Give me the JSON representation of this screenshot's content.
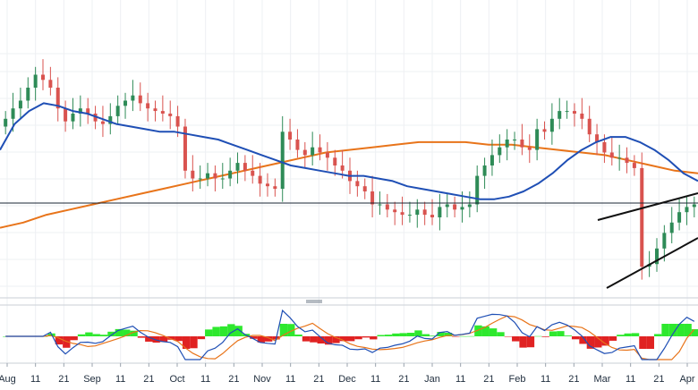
{
  "chart_data": [
    {
      "type": "candlestick",
      "panel": "price",
      "x_tick_labels": [
        "Aug",
        "11",
        "21",
        "Sep",
        "11",
        "21",
        "Oct",
        "11",
        "21",
        "Nov",
        "11",
        "21",
        "Dec",
        "11",
        "21",
        "Jan",
        "11",
        "21",
        "Feb",
        "11",
        "21",
        "Mar",
        "11",
        "21",
        "Apr"
      ],
      "y_range": [
        0,
        100
      ],
      "grid": true,
      "series": [
        {
          "kind": "candles",
          "color_up": "#2e8b57",
          "color_down": "#d9534f",
          "close": [
            68,
            72,
            75,
            80,
            85,
            83,
            80,
            72,
            67,
            70,
            72,
            70,
            67,
            66,
            69,
            73,
            75,
            77,
            74,
            72,
            71,
            70,
            69,
            65,
            48,
            45,
            45,
            47,
            45,
            45,
            48,
            51,
            48,
            46,
            43,
            42,
            41,
            63,
            60,
            56,
            54,
            57,
            55,
            53,
            50,
            48,
            44,
            42,
            40,
            35,
            35,
            33,
            32,
            31,
            31,
            33,
            31,
            30,
            34,
            35,
            33,
            34,
            35,
            46,
            50,
            54,
            57,
            60,
            60,
            57,
            56,
            64,
            63,
            68,
            71,
            71,
            70,
            68,
            62,
            59,
            55,
            53,
            53,
            51,
            49,
            11,
            12,
            18,
            24,
            28,
            32,
            34,
            35
          ],
          "high_low_note": "wick extremes approx +/- 4 around body"
        },
        {
          "kind": "line",
          "color": "#1f4fb5",
          "values": [
            56,
            66,
            71,
            74,
            73,
            71,
            70,
            68,
            66,
            65,
            64,
            63,
            63,
            62,
            61,
            60,
            58,
            56,
            54,
            52,
            50,
            49,
            48,
            47,
            46,
            46,
            45,
            44,
            42,
            41,
            40,
            39,
            38,
            37,
            37,
            38,
            40,
            43,
            47,
            52,
            56,
            59,
            61,
            61,
            59,
            56,
            52,
            47,
            44
          ]
        },
        {
          "kind": "line",
          "color": "#e8741a",
          "values": [
            26,
            28,
            31,
            33,
            35,
            37,
            39,
            41,
            43,
            45,
            47,
            49,
            51,
            53,
            55,
            56,
            57,
            58,
            59,
            59,
            59,
            58,
            58,
            57,
            56,
            55,
            54,
            52,
            50,
            48,
            47
          ]
        },
        {
          "kind": "horizontal_line",
          "color": "#1a2433",
          "value": 35.5
        },
        {
          "kind": "trendline_pair",
          "color": "#111111",
          "note": "rising wedge drawn in March–April"
        }
      ]
    },
    {
      "type": "macd",
      "panel": "oscillator",
      "series": [
        {
          "name": "",
          "kind": "line",
          "color": "#1f4fb5"
        },
        {
          "name": "",
          "kind": "line",
          "color": "#e8741a"
        },
        {
          "kind": "histogram",
          "color_pos": "#2ee82e",
          "color_neg": "#e02222"
        }
      ]
    }
  ]
}
